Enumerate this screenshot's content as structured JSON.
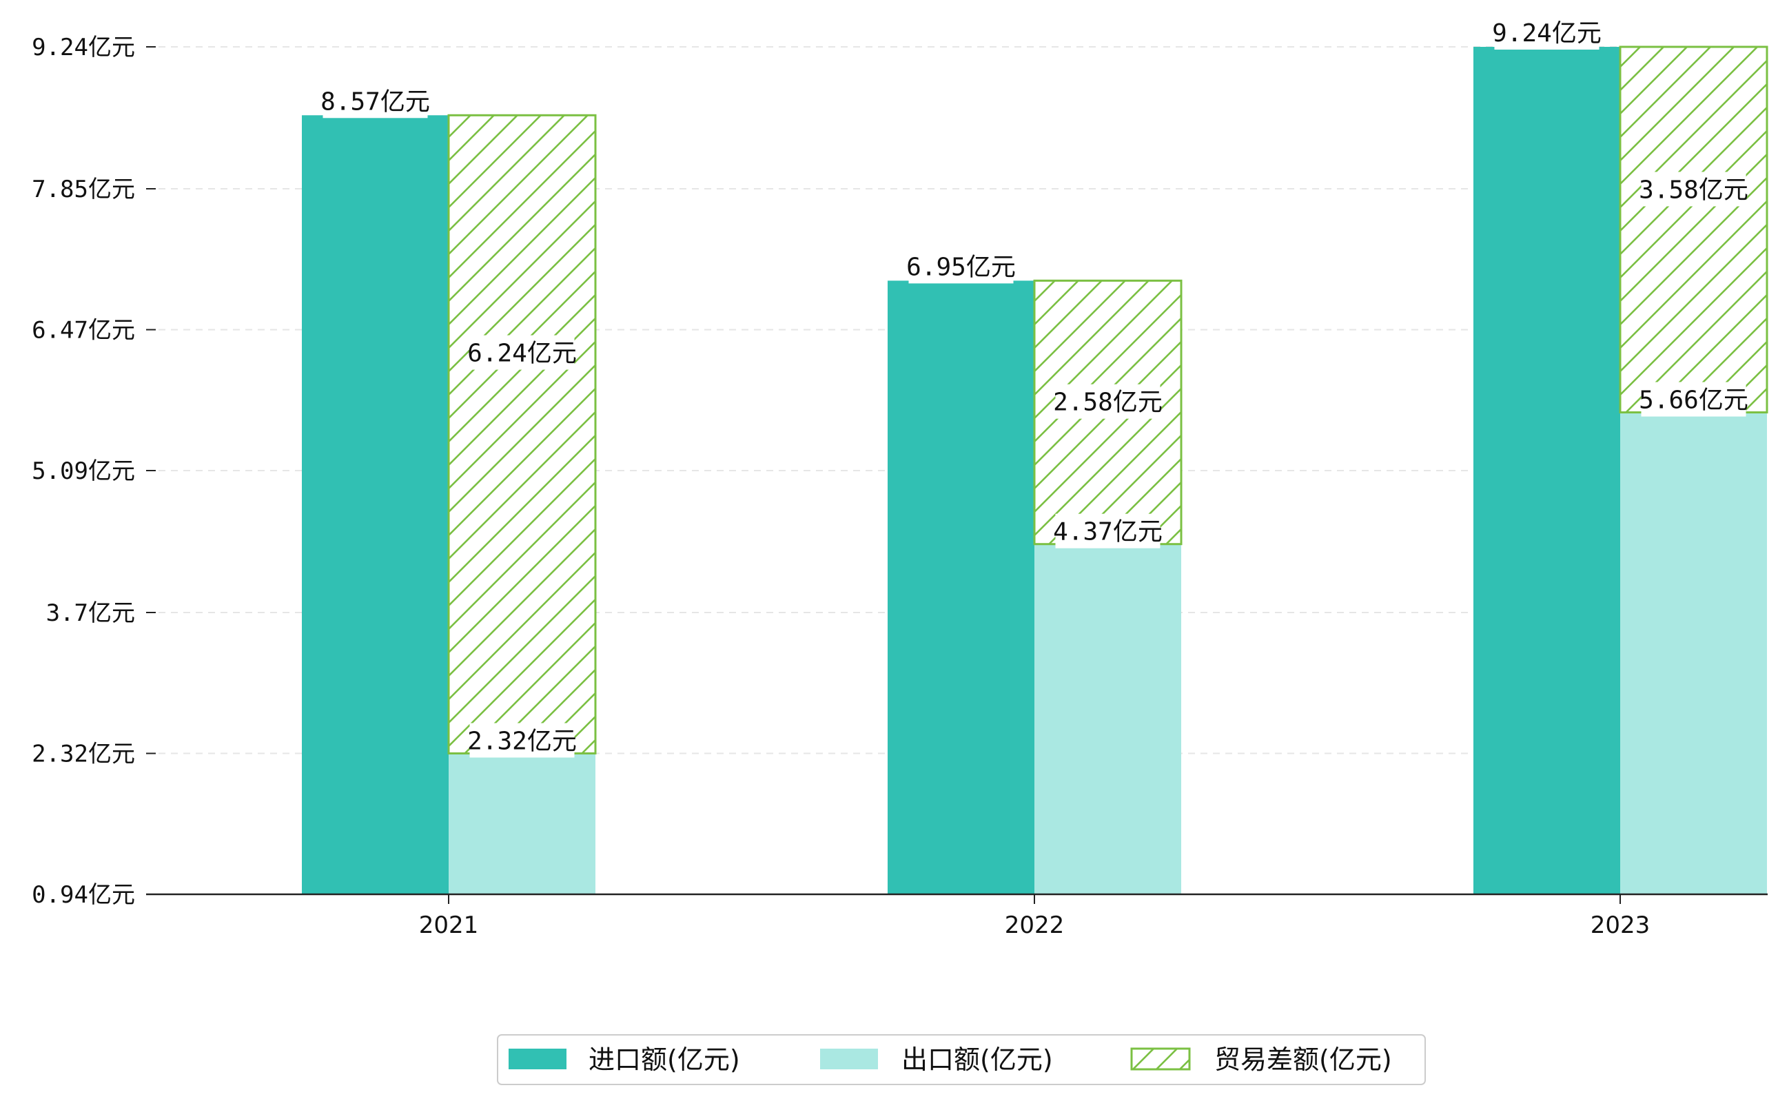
{
  "chart_data": {
    "type": "bar",
    "categories": [
      "2021",
      "2022",
      "2023"
    ],
    "series": [
      {
        "name": "进口额(亿元)",
        "key": "import",
        "values": [
          8.57,
          6.95,
          9.24
        ],
        "color": "#31c0b3"
      },
      {
        "name": "出口额(亿元)",
        "key": "export",
        "values": [
          2.32,
          4.37,
          5.66
        ],
        "color": "#aae8e2"
      },
      {
        "name": "贸易差额(亿元)",
        "key": "balance",
        "values": [
          6.24,
          2.58,
          3.58
        ],
        "color": "#7bc043",
        "pattern": "hatch"
      }
    ],
    "import_labels": [
      "8.57亿元",
      "6.95亿元",
      "9.24亿元"
    ],
    "export_labels": [
      "2.32亿元",
      "4.37亿元",
      "5.66亿元"
    ],
    "balance_labels": [
      "6.24亿元",
      "2.58亿元",
      "3.58亿元"
    ],
    "balance_top_values": [
      8.57,
      6.95,
      9.24
    ],
    "y_ticks": [
      0.94,
      2.32,
      3.7,
      5.09,
      6.47,
      7.85,
      9.24
    ],
    "y_tick_labels": [
      "0.94亿元",
      "2.32亿元",
      "3.7亿元",
      "5.09亿元",
      "6.47亿元",
      "7.85亿元",
      "9.24亿元"
    ],
    "ylim": [
      0.94,
      9.24
    ],
    "grid": true,
    "legend_position": "bottom-center",
    "title": "",
    "xlabel": "",
    "ylabel": ""
  },
  "legend": {
    "import": "进口额(亿元)",
    "export": "出口额(亿元)",
    "balance": "贸易差额(亿元)"
  }
}
